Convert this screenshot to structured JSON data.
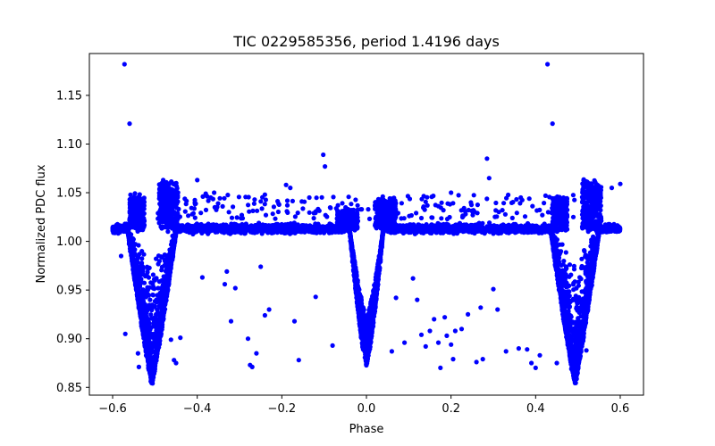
{
  "chart_data": {
    "type": "scatter",
    "title": "TIC 0229585356, period 1.4196 days",
    "xlabel": "Phase",
    "ylabel": "Normalized PDC flux",
    "xlim": [
      -0.655,
      0.655
    ],
    "ylim": [
      0.842,
      1.193
    ],
    "xticks": [
      -0.6,
      -0.4,
      -0.2,
      0.0,
      0.2,
      0.4,
      0.6
    ],
    "xtick_labels": [
      "−0.6",
      "−0.4",
      "−0.2",
      "0.0",
      "0.2",
      "0.4",
      "0.6"
    ],
    "yticks": [
      0.85,
      0.9,
      0.95,
      1.0,
      1.05,
      1.1,
      1.15
    ],
    "ytick_labels": [
      "0.85",
      "0.90",
      "0.95",
      "1.00",
      "1.05",
      "1.10",
      "1.15"
    ],
    "grid": false,
    "legend": "none",
    "color": "#0000ff",
    "dense_components": {
      "baseline": {
        "level": 1.013,
        "scatter": 0.004
      },
      "primary_eclipse_centers": [
        -0.507,
        0.493
      ],
      "primary_depth_min": 0.855,
      "secondary_eclipse_center": 0.0,
      "secondary_depth_min": 0.875,
      "reflection_peak_phases": [
        -0.54,
        0.44,
        -0.46,
        0.54
      ],
      "reflection_peak_max": 1.062
    },
    "outliers": [
      {
        "x": -0.572,
        "y": 1.182
      },
      {
        "x": -0.56,
        "y": 1.121
      },
      {
        "x": 0.428,
        "y": 1.182
      },
      {
        "x": 0.44,
        "y": 1.121
      },
      {
        "x": -0.102,
        "y": 1.089
      },
      {
        "x": -0.098,
        "y": 1.077
      },
      {
        "x": 0.285,
        "y": 1.085
      },
      {
        "x": -0.58,
        "y": 0.985
      },
      {
        "x": -0.57,
        "y": 0.905
      },
      {
        "x": -0.54,
        "y": 0.885
      },
      {
        "x": -0.538,
        "y": 0.871
      },
      {
        "x": -0.462,
        "y": 0.899
      },
      {
        "x": -0.455,
        "y": 0.878
      },
      {
        "x": -0.45,
        "y": 0.875
      },
      {
        "x": -0.44,
        "y": 0.901
      },
      {
        "x": -0.388,
        "y": 0.963
      },
      {
        "x": -0.335,
        "y": 0.956
      },
      {
        "x": -0.33,
        "y": 0.969
      },
      {
        "x": -0.32,
        "y": 0.918
      },
      {
        "x": -0.31,
        "y": 0.952
      },
      {
        "x": -0.28,
        "y": 0.9
      },
      {
        "x": -0.275,
        "y": 0.873
      },
      {
        "x": -0.27,
        "y": 0.871
      },
      {
        "x": -0.26,
        "y": 0.885
      },
      {
        "x": -0.25,
        "y": 0.974
      },
      {
        "x": -0.24,
        "y": 0.924
      },
      {
        "x": -0.23,
        "y": 0.93
      },
      {
        "x": -0.17,
        "y": 0.918
      },
      {
        "x": -0.16,
        "y": 0.878
      },
      {
        "x": -0.12,
        "y": 0.943
      },
      {
        "x": -0.08,
        "y": 0.893
      },
      {
        "x": 0.06,
        "y": 0.887
      },
      {
        "x": 0.07,
        "y": 0.942
      },
      {
        "x": 0.09,
        "y": 0.896
      },
      {
        "x": 0.11,
        "y": 0.962
      },
      {
        "x": 0.12,
        "y": 0.94
      },
      {
        "x": 0.13,
        "y": 0.904
      },
      {
        "x": 0.14,
        "y": 0.892
      },
      {
        "x": 0.15,
        "y": 0.908
      },
      {
        "x": 0.16,
        "y": 0.92
      },
      {
        "x": 0.17,
        "y": 0.896
      },
      {
        "x": 0.175,
        "y": 0.87
      },
      {
        "x": 0.185,
        "y": 0.922
      },
      {
        "x": 0.19,
        "y": 0.903
      },
      {
        "x": 0.2,
        "y": 0.894
      },
      {
        "x": 0.205,
        "y": 0.879
      },
      {
        "x": 0.21,
        "y": 0.908
      },
      {
        "x": 0.225,
        "y": 0.91
      },
      {
        "x": 0.24,
        "y": 0.925
      },
      {
        "x": 0.26,
        "y": 0.876
      },
      {
        "x": 0.27,
        "y": 0.932
      },
      {
        "x": 0.275,
        "y": 0.879
      },
      {
        "x": 0.3,
        "y": 0.951
      },
      {
        "x": 0.31,
        "y": 0.93
      },
      {
        "x": 0.33,
        "y": 0.887
      },
      {
        "x": 0.36,
        "y": 0.89
      },
      {
        "x": 0.38,
        "y": 0.889
      },
      {
        "x": 0.39,
        "y": 0.875
      },
      {
        "x": 0.4,
        "y": 0.87
      },
      {
        "x": 0.41,
        "y": 0.883
      },
      {
        "x": 0.45,
        "y": 0.875
      },
      {
        "x": 0.52,
        "y": 0.888
      },
      {
        "x": 0.6,
        "y": 1.059
      },
      {
        "x": 0.58,
        "y": 1.055
      },
      {
        "x": -0.4,
        "y": 1.063
      },
      {
        "x": -0.38,
        "y": 1.049
      },
      {
        "x": -0.36,
        "y": 1.05
      },
      {
        "x": -0.24,
        "y": 1.048
      },
      {
        "x": -0.19,
        "y": 1.058
      },
      {
        "x": -0.18,
        "y": 1.055
      },
      {
        "x": 0.29,
        "y": 1.065
      },
      {
        "x": 0.2,
        "y": 1.05
      }
    ]
  }
}
